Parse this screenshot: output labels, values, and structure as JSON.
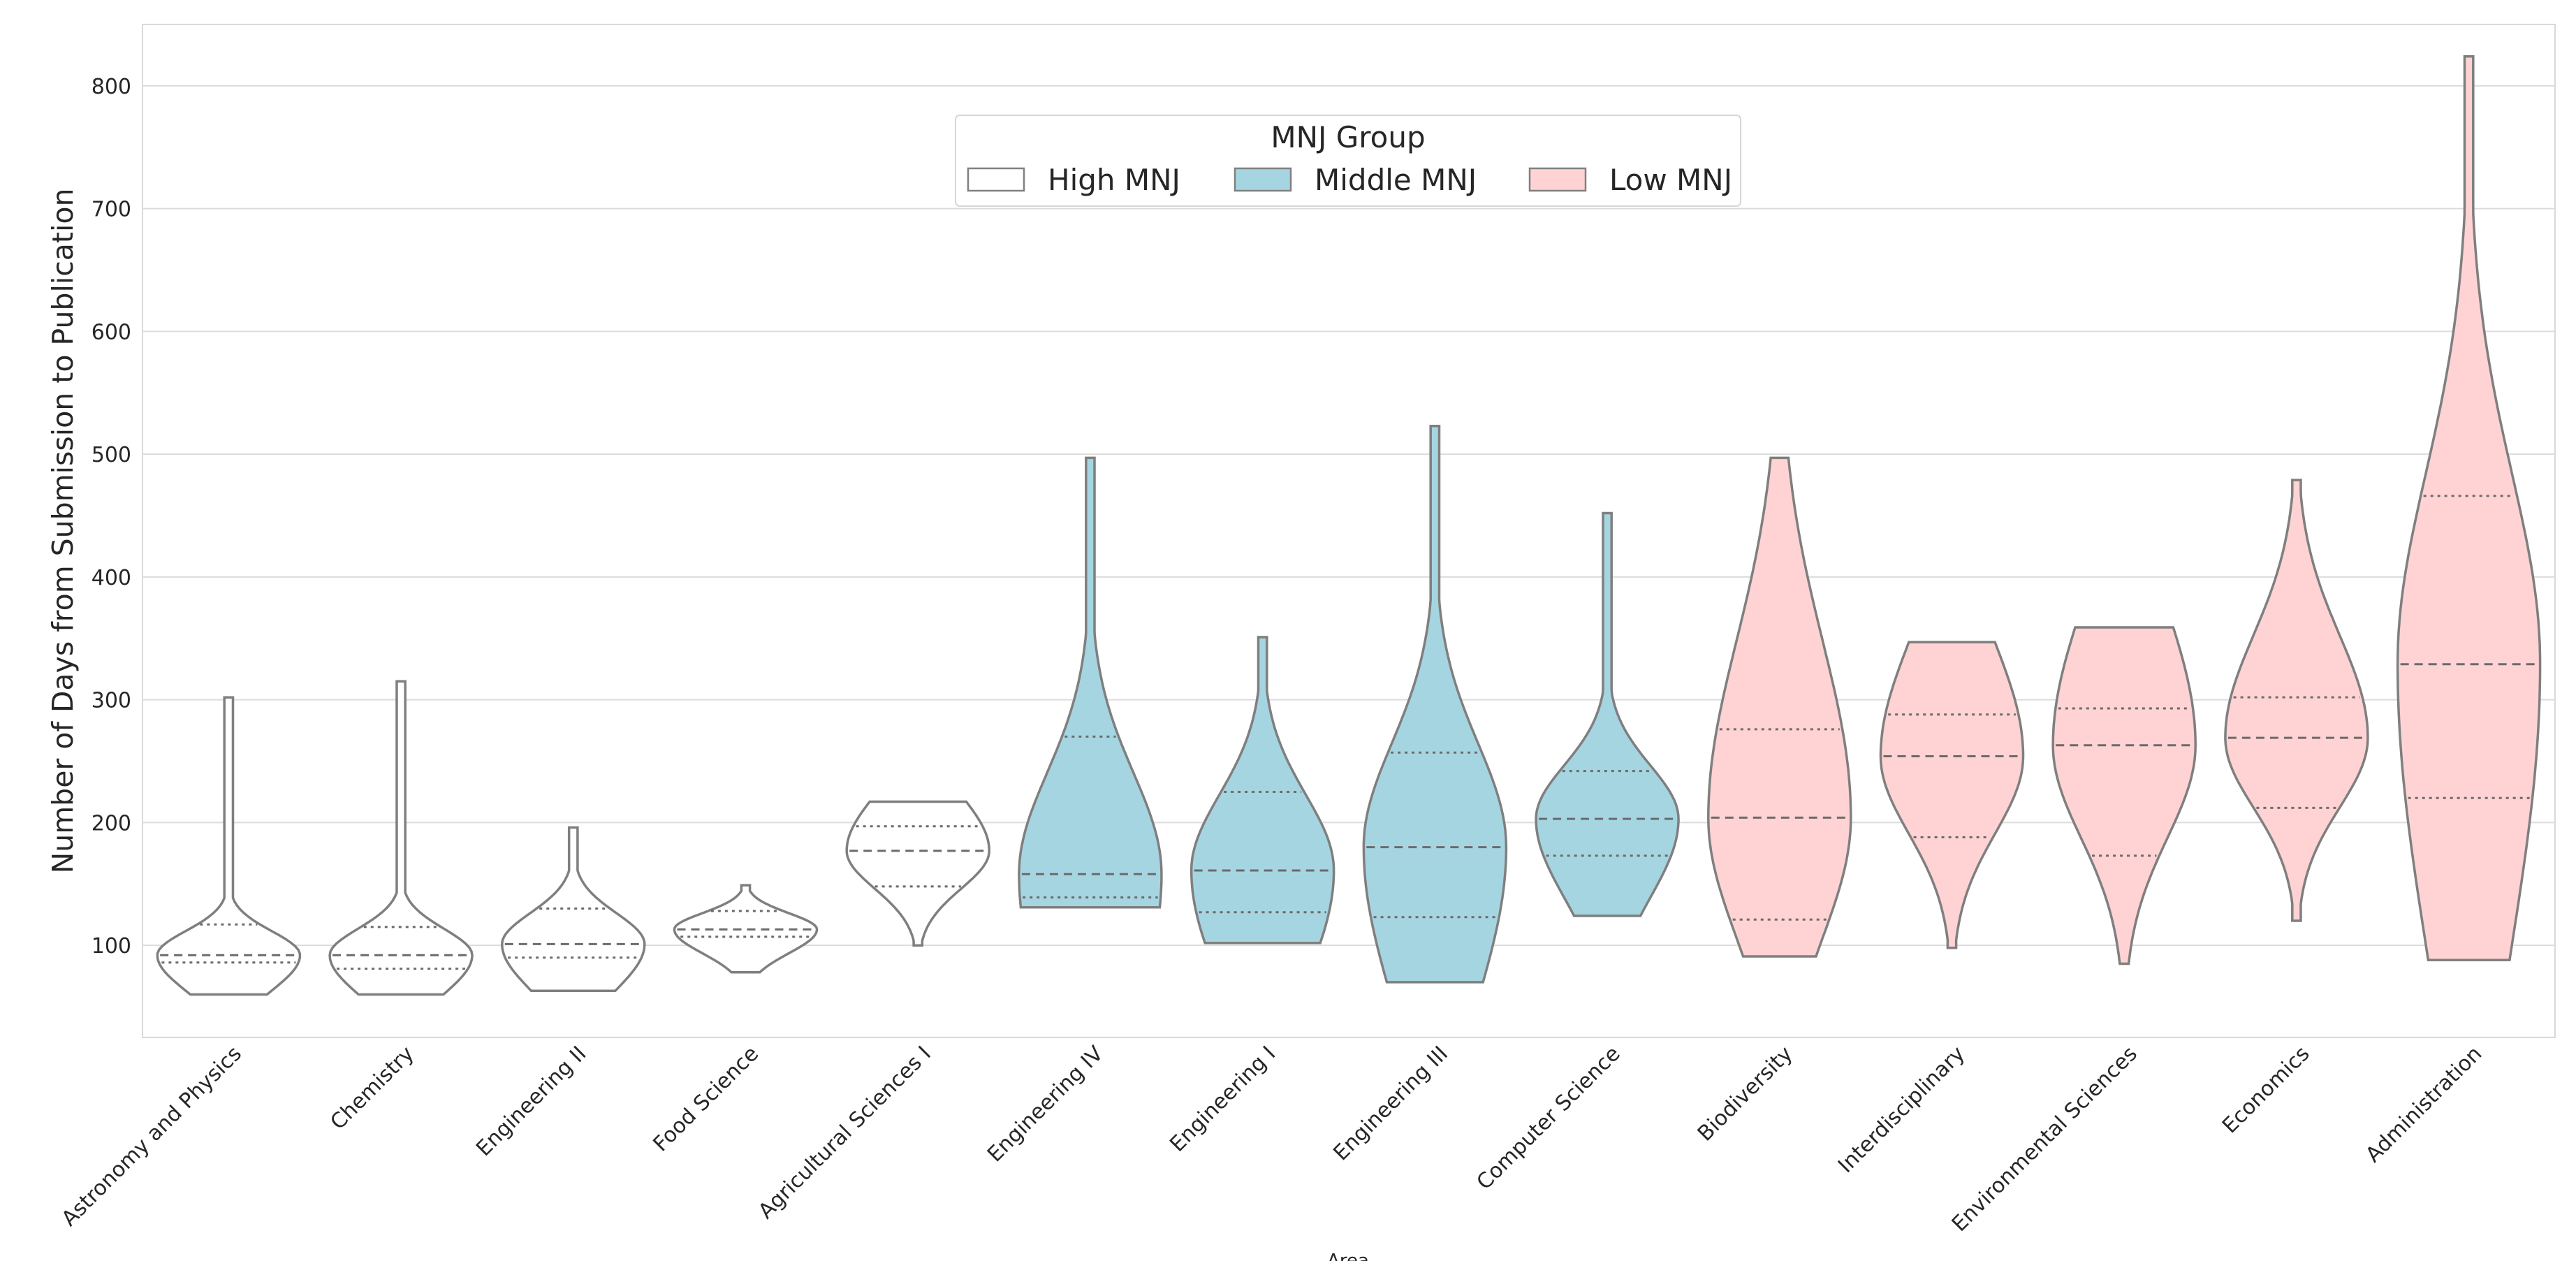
{
  "chart_data": {
    "type": "violin",
    "xlabel": "Area",
    "ylabel": "Number of Days from Submission to Publication",
    "ylim": [
      25,
      850
    ],
    "yticks": [
      100,
      200,
      300,
      400,
      500,
      600,
      700,
      800
    ],
    "grid": true,
    "legend": {
      "title": "MNJ Group",
      "placement": "top-center",
      "entries": [
        {
          "label": "High MNJ",
          "color": "#ffffff"
        },
        {
          "label": "Middle MNJ",
          "color": "#a6d5e2"
        },
        {
          "label": "Low MNJ",
          "color": "#ffd3d4"
        }
      ]
    },
    "categories": [
      {
        "name": "Astronomy and Physics",
        "group": "High MNJ",
        "min": 60,
        "max": 302,
        "q1": 86,
        "median": 92,
        "q3": 117
      },
      {
        "name": "Chemistry",
        "group": "High MNJ",
        "min": 60,
        "max": 315,
        "q1": 81,
        "median": 92,
        "q3": 115
      },
      {
        "name": "Engineering II",
        "group": "High MNJ",
        "min": 63,
        "max": 196,
        "q1": 90,
        "median": 101,
        "q3": 130
      },
      {
        "name": "Food Science",
        "group": "High MNJ",
        "min": 78,
        "max": 149,
        "q1": 107,
        "median": 113,
        "q3": 128
      },
      {
        "name": "Agricultural Sciences I",
        "group": "High MNJ",
        "min": 100,
        "max": 217,
        "q1": 148,
        "median": 177,
        "q3": 197
      },
      {
        "name": "Engineering IV",
        "group": "Middle MNJ",
        "min": 131,
        "max": 497,
        "q1": 139,
        "median": 158,
        "q3": 270
      },
      {
        "name": "Engineering I",
        "group": "Middle MNJ",
        "min": 102,
        "max": 351,
        "q1": 127,
        "median": 161,
        "q3": 225
      },
      {
        "name": "Engineering III",
        "group": "Middle MNJ",
        "min": 70,
        "max": 523,
        "q1": 123,
        "median": 180,
        "q3": 257
      },
      {
        "name": "Computer Science",
        "group": "Middle MNJ",
        "min": 124,
        "max": 452,
        "q1": 173,
        "median": 203,
        "q3": 242
      },
      {
        "name": "Biodiversity",
        "group": "Low MNJ",
        "min": 91,
        "max": 497,
        "q1": 121,
        "median": 204,
        "q3": 276
      },
      {
        "name": "Interdisciplinary",
        "group": "Low MNJ",
        "min": 98,
        "max": 347,
        "q1": 188,
        "median": 254,
        "q3": 288
      },
      {
        "name": "Environmental Sciences",
        "group": "Low MNJ",
        "min": 85,
        "max": 359,
        "q1": 173,
        "median": 263,
        "q3": 293
      },
      {
        "name": "Economics",
        "group": "Low MNJ",
        "min": 120,
        "max": 479,
        "q1": 212,
        "median": 269,
        "q3": 302
      },
      {
        "name": "Administration",
        "group": "Low MNJ",
        "min": 88,
        "max": 824,
        "q1": 220,
        "median": 329,
        "q3": 466
      }
    ]
  }
}
